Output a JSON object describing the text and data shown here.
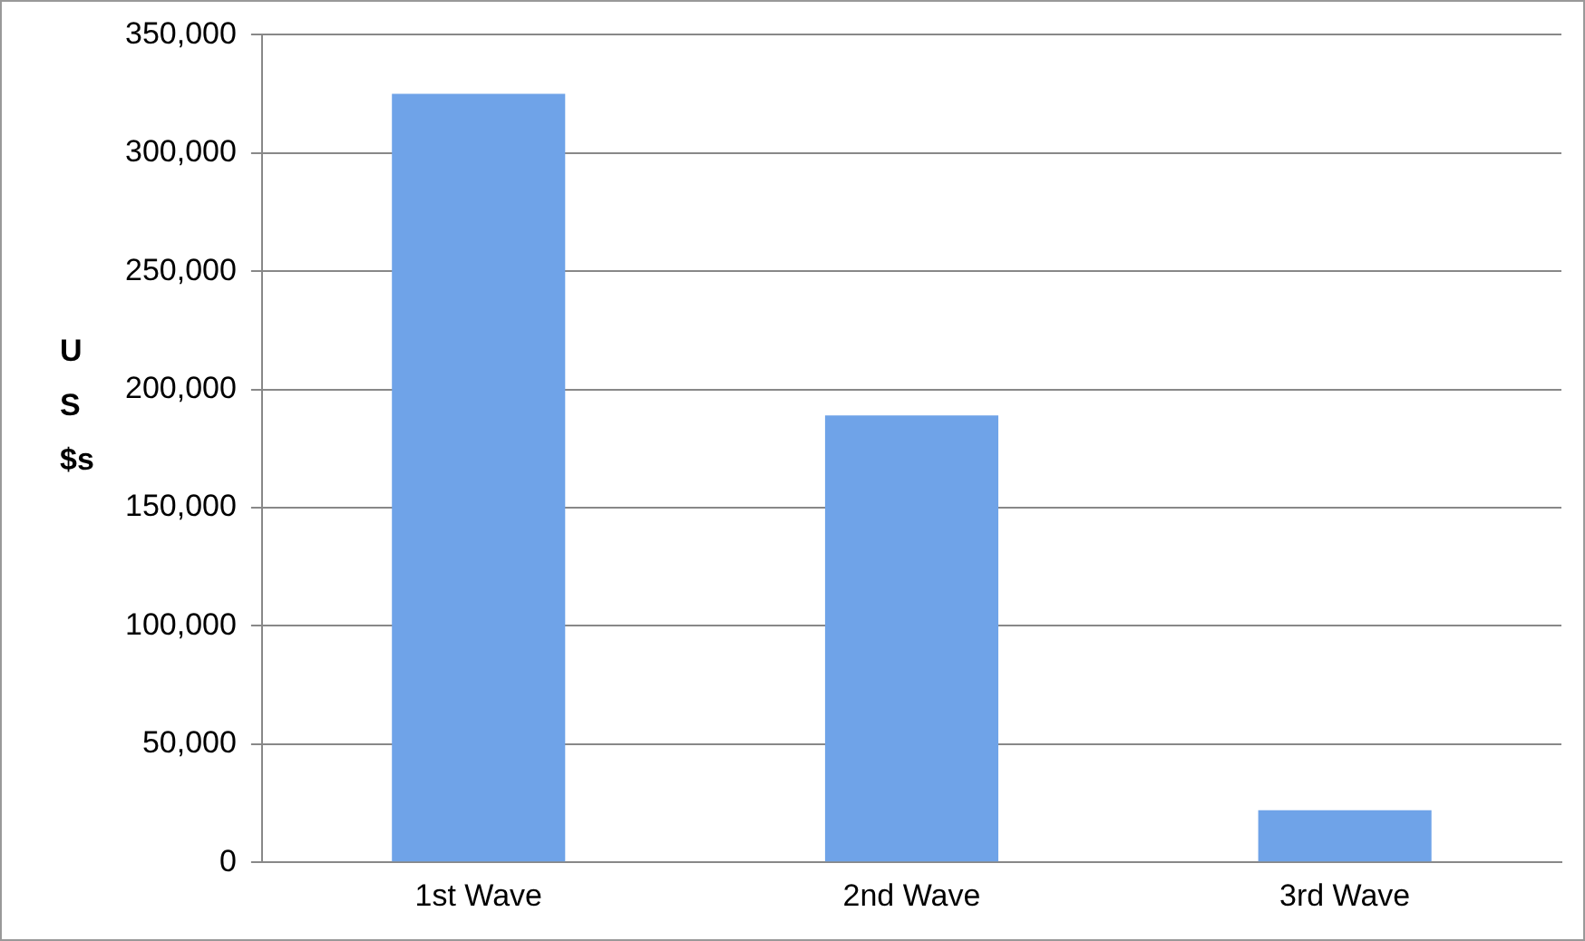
{
  "chart_data": {
    "type": "bar",
    "ylabel": "US $s",
    "categories": [
      "1st Wave",
      "2nd Wave",
      "3rd Wave"
    ],
    "values": [
      325000,
      189000,
      22000
    ],
    "color": "#6fa3e8",
    "ylim": [
      0,
      350000
    ],
    "yticks": [
      0,
      {
        "value": 50000,
        "label": "50,000"
      },
      {
        "value": 100000,
        "label": "100,000"
      },
      {
        "value": 150000,
        "label": "150,000"
      },
      {
        "value": 200000,
        "label": "200,000"
      },
      {
        "value": 250000,
        "label": "250,000"
      },
      {
        "value": 300000,
        "label": "300,000"
      },
      {
        "value": 350000,
        "label": "350,000"
      }
    ],
    "grid": "y",
    "legend": false
  }
}
